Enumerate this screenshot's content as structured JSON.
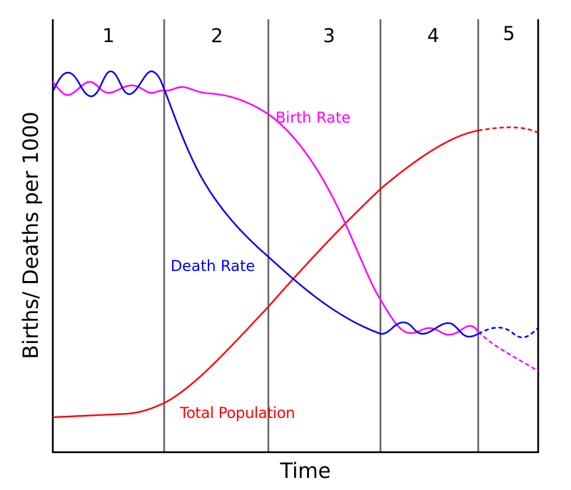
{
  "title": "",
  "xlabel": "Time",
  "ylabel": "Births/ Deaths per 1000",
  "stages": [
    "1",
    "2",
    "3",
    "4",
    "5"
  ],
  "series": [
    {
      "name": "Birth Rate",
      "color": "#ff00ff"
    },
    {
      "name": "Death Rate",
      "color": "#0000ee"
    },
    {
      "name": "Total Population",
      "color": "#ff0000"
    }
  ],
  "divider_color": "#666666",
  "axis_color": "#000000"
}
